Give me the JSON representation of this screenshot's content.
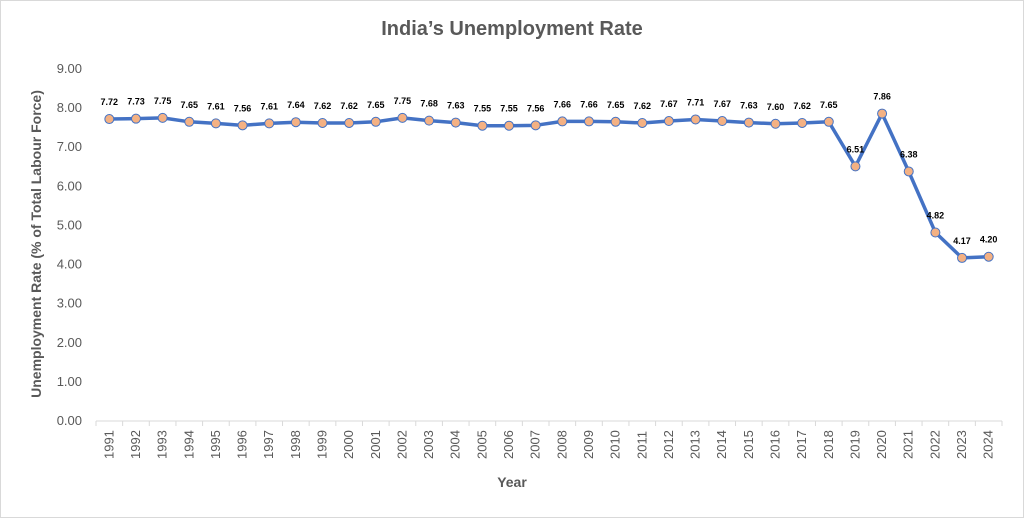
{
  "chart_data": {
    "type": "line",
    "title": "India’s Unemployment Rate",
    "xlabel": "Year",
    "ylabel": "Unemployment Rate (% of Total Labour Force)",
    "ylim": [
      0,
      9
    ],
    "ytick_labels": [
      "0.00",
      "1.00",
      "2.00",
      "3.00",
      "4.00",
      "5.00",
      "6.00",
      "7.00",
      "8.00",
      "9.00"
    ],
    "grid": false,
    "legend": "none",
    "categories": [
      "1991",
      "1992",
      "1993",
      "1994",
      "1995",
      "1996",
      "1997",
      "1998",
      "1999",
      "2000",
      "2001",
      "2002",
      "2003",
      "2004",
      "2005",
      "2006",
      "2007",
      "2008",
      "2009",
      "2010",
      "2011",
      "2012",
      "2013",
      "2014",
      "2015",
      "2016",
      "2017",
      "2018",
      "2019",
      "2020",
      "2021",
      "2022",
      "2023",
      "2024"
    ],
    "series": [
      {
        "values": [
          7.72,
          7.73,
          7.75,
          7.65,
          7.61,
          7.56,
          7.61,
          7.64,
          7.62,
          7.62,
          7.65,
          7.75,
          7.68,
          7.63,
          7.55,
          7.55,
          7.56,
          7.66,
          7.66,
          7.65,
          7.62,
          7.67,
          7.71,
          7.67,
          7.63,
          7.6,
          7.62,
          7.65,
          6.51,
          7.86,
          6.38,
          4.82,
          4.17,
          4.2
        ],
        "data_labels": [
          "7.72",
          "7.73",
          "7.75",
          "7.65",
          "7.61",
          "7.56",
          "7.61",
          "7.64",
          "7.62",
          "7.62",
          "7.65",
          "7.75",
          "7.68",
          "7.63",
          "7.55",
          "7.55",
          "7.56",
          "7.66",
          "7.66",
          "7.65",
          "7.62",
          "7.67",
          "7.71",
          "7.67",
          "7.63",
          "7.60",
          "7.62",
          "7.65",
          "6.51",
          "7.86",
          "6.38",
          "4.82",
          "4.17",
          "4.20"
        ],
        "line_color": "#4472c4",
        "marker_fill": "#f4b183",
        "marker_stroke": "#4472c4"
      }
    ],
    "axis_color": "#d9d9d9",
    "text_color": "#595959"
  }
}
